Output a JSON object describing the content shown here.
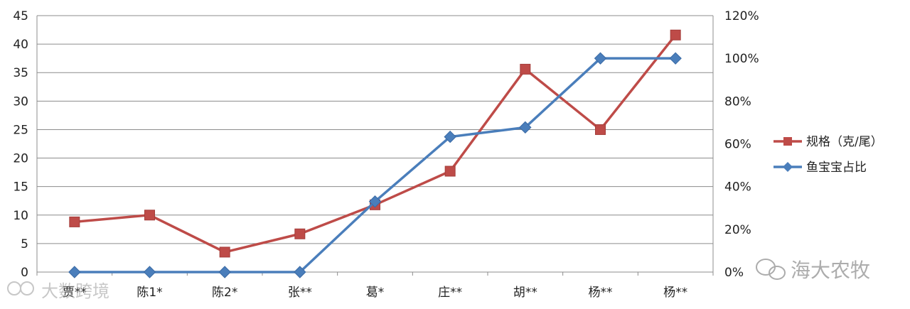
{
  "chart_data": {
    "type": "line",
    "categories": [
      "贾**",
      "陈1*",
      "陈2*",
      "张**",
      "葛*",
      "庄**",
      "胡**",
      "杨**",
      "杨**"
    ],
    "y_left": {
      "min": 0,
      "max": 45,
      "step": 5,
      "ticks": [
        "0",
        "5",
        "10",
        "15",
        "20",
        "25",
        "30",
        "35",
        "40",
        "45"
      ]
    },
    "y_right": {
      "min": 0,
      "max": 1.2,
      "step": 0.2,
      "ticks": [
        "0%",
        "20%",
        "40%",
        "60%",
        "80%",
        "100%",
        "120%"
      ]
    },
    "grid": true,
    "legend_position": "right",
    "series": [
      {
        "name": "规格（克/尾）",
        "axis": "left",
        "marker": "square",
        "color": "#be4b48",
        "values": [
          8.8,
          10.0,
          3.5,
          6.7,
          11.8,
          17.7,
          35.6,
          25.0,
          41.6
        ]
      },
      {
        "name": "鱼宝宝占比",
        "axis": "right",
        "marker": "diamond",
        "color": "#4a7ebb",
        "values": [
          0.0,
          0.0,
          0.0,
          0.0,
          0.33,
          0.633,
          0.677,
          1.0,
          1.0
        ]
      }
    ]
  },
  "watermarks": {
    "bottom_left": "大数跨境",
    "bottom_right": "海大农牧"
  }
}
